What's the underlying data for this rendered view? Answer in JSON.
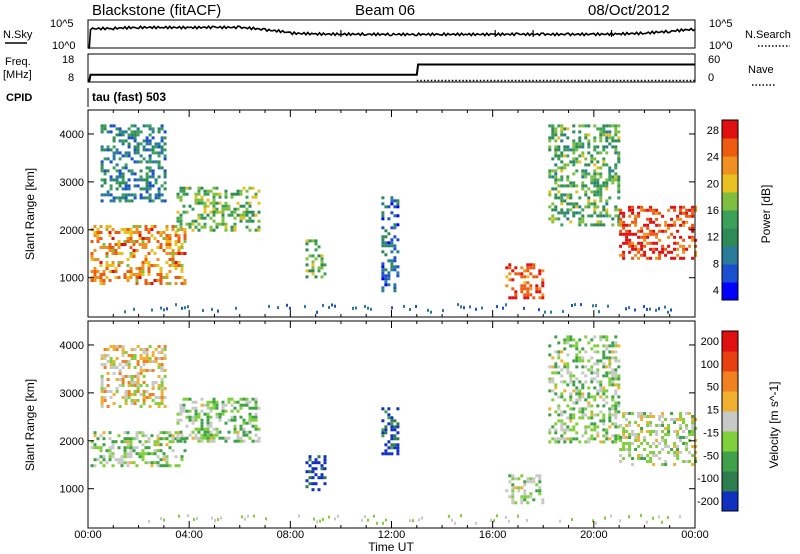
{
  "header": {
    "station": "Blackstone (fitACF)",
    "beam": "Beam 06",
    "date": "08/Oct/2012",
    "cpid_label": "CPID",
    "cpid_value": "tau (fast) 503"
  },
  "chart_data": [
    {
      "type": "line",
      "panel": "noise",
      "left_label": "N.Sky",
      "right_label": "N.Search",
      "left_ticks": [
        "10^5",
        "10^0"
      ],
      "right_ticks": [
        "10^5",
        "10^0"
      ],
      "y_scale": "log",
      "series": [
        {
          "name": "N.Sky",
          "style": "solid",
          "x": [
            0.0,
            0.05,
            0.1,
            1,
            2,
            3,
            4,
            5,
            6,
            7,
            8,
            9,
            10,
            11,
            12,
            13,
            14,
            15,
            16,
            17,
            18,
            19,
            20,
            21,
            22,
            23,
            24
          ],
          "y": [
            1,
            1,
            5000,
            6000,
            9000,
            9000,
            8500,
            9500,
            9000,
            3000,
            700,
            500,
            450,
            450,
            420,
            420,
            430,
            420,
            420,
            450,
            420,
            420,
            440,
            500,
            700,
            1500,
            4000
          ]
        }
      ]
    },
    {
      "type": "line",
      "panel": "frequency",
      "left_label": "Freq. [MHz]",
      "right_label": "Nave",
      "left_ticks": [
        "18",
        "8"
      ],
      "right_ticks": [
        "60",
        "0"
      ],
      "series": [
        {
          "name": "Freq.",
          "style": "solid",
          "x": [
            0,
            0.05,
            0.1,
            13.0,
            13.05,
            24
          ],
          "y": [
            8,
            8,
            10.5,
            10.5,
            14.6,
            14.6
          ]
        },
        {
          "name": "Nave",
          "style": "dotted",
          "x": [
            13.0,
            24
          ],
          "y": [
            8.2,
            8.2
          ]
        }
      ]
    },
    {
      "type": "heatmap",
      "panel": "power",
      "ylabel": "Slant Range [km]",
      "y_ticks": [
        1000,
        2000,
        3000,
        4000
      ],
      "ylim": [
        180,
        4500
      ],
      "xlim": [
        0,
        24
      ],
      "colorbar_label": "Power [dB]",
      "colorbar_ticks": [
        "28",
        "24",
        "20",
        "16",
        "12",
        "8",
        "4"
      ],
      "colorbar_colors": [
        "#0000ff",
        "#1a4fd0",
        "#2a7a9a",
        "#2e8b57",
        "#3aa05a",
        "#7fbf3f",
        "#e8c020",
        "#f09020",
        "#ee5a10",
        "#e01010"
      ],
      "regions": [
        {
          "t0": 0.1,
          "t1": 3.8,
          "r0": 900,
          "r1": 2100,
          "level": 0.75
        },
        {
          "t0": 0.5,
          "t1": 3.0,
          "r0": 2600,
          "r1": 4200,
          "level": 0.3
        },
        {
          "t0": 3.5,
          "t1": 6.8,
          "r0": 2000,
          "r1": 2900,
          "level": 0.5
        },
        {
          "t0": 8.6,
          "t1": 9.4,
          "r0": 1000,
          "r1": 1800,
          "level": 0.45
        },
        {
          "t0": 11.6,
          "t1": 12.3,
          "r0": 700,
          "r1": 2700,
          "level": 0.2
        },
        {
          "t0": 16.5,
          "t1": 18.0,
          "r0": 600,
          "r1": 1300,
          "level": 0.85
        },
        {
          "t0": 18.2,
          "t1": 21.0,
          "r0": 2100,
          "r1": 4200,
          "level": 0.45
        },
        {
          "t0": 21.0,
          "t1": 24.0,
          "r0": 1400,
          "r1": 2500,
          "level": 0.9
        }
      ]
    },
    {
      "type": "heatmap",
      "panel": "velocity",
      "ylabel": "Slant Range [km]",
      "y_ticks": [
        1000,
        2000,
        3000,
        4000
      ],
      "ylim": [
        180,
        4500
      ],
      "xlim": [
        0,
        24
      ],
      "xlabel": "Time UT",
      "x_ticks": [
        "00:00",
        "04:00",
        "08:00",
        "12:00",
        "16:00",
        "20:00",
        "00:00"
      ],
      "colorbar_label": "Velocity [m s^-1]",
      "colorbar_ticks": [
        "200",
        "100",
        "50",
        "15",
        "-15",
        "-50",
        "-100",
        "-200"
      ],
      "colorbar_colors": [
        "#1030c0",
        "#2e7d4f",
        "#3fa24a",
        "#7fd03a",
        "#c8c8c8",
        "#f0b030",
        "#f08020",
        "#e84010",
        "#e01010"
      ],
      "regions": [
        {
          "t0": 0.1,
          "t1": 3.8,
          "r0": 1500,
          "r1": 2200,
          "level": 0.4
        },
        {
          "t0": 0.5,
          "t1": 3.0,
          "r0": 2700,
          "r1": 4000,
          "level": 0.55
        },
        {
          "t0": 3.5,
          "t1": 6.8,
          "r0": 2000,
          "r1": 2900,
          "level": 0.4
        },
        {
          "t0": 8.6,
          "t1": 9.4,
          "r0": 1000,
          "r1": 1700,
          "level": 0.02
        },
        {
          "t0": 11.6,
          "t1": 12.3,
          "r0": 1700,
          "r1": 2700,
          "level": 0.1
        },
        {
          "t0": 16.5,
          "t1": 18.0,
          "r0": 700,
          "r1": 1300,
          "level": 0.42
        },
        {
          "t0": 18.2,
          "t1": 21.0,
          "r0": 2000,
          "r1": 4200,
          "level": 0.4
        },
        {
          "t0": 21.0,
          "t1": 24.0,
          "r0": 1500,
          "r1": 2600,
          "level": 0.45
        }
      ]
    }
  ]
}
